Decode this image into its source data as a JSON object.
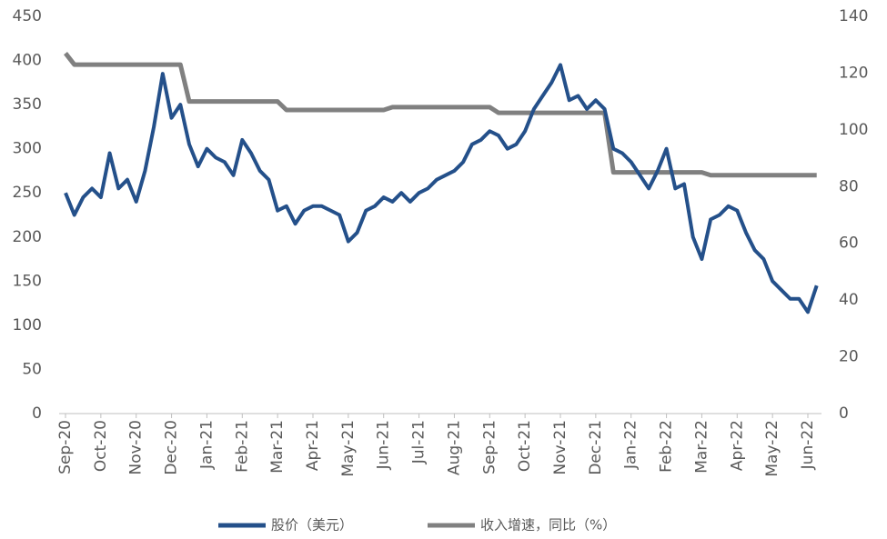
{
  "chart_data": {
    "type": "line",
    "categories": [
      "Sep-20",
      null,
      null,
      null,
      "Oct-20",
      null,
      null,
      null,
      "Nov-20",
      null,
      null,
      null,
      "Dec-20",
      null,
      null,
      null,
      "Jan-21",
      null,
      null,
      null,
      "Feb-21",
      null,
      null,
      null,
      "Mar-21",
      null,
      null,
      null,
      "Apr-21",
      null,
      null,
      null,
      "May-21",
      null,
      null,
      null,
      "Jun-21",
      null,
      null,
      null,
      "Jul-21",
      null,
      null,
      null,
      "Aug-21",
      null,
      null,
      null,
      "Sep-21",
      null,
      null,
      null,
      "Oct-21",
      null,
      null,
      null,
      "Nov-21",
      null,
      null,
      null,
      "Dec-21",
      null,
      null,
      null,
      "Jan-22",
      null,
      null,
      null,
      "Feb-22",
      null,
      null,
      null,
      "Mar-22",
      null,
      null,
      null,
      "Apr-22",
      null,
      null,
      null,
      "May-22",
      null,
      null,
      null,
      "Jun-22",
      null
    ],
    "series": [
      {
        "name": "股价（美元）",
        "color": "#24508a",
        "values": [
          250,
          225,
          245,
          255,
          245,
          295,
          255,
          265,
          240,
          275,
          325,
          385,
          335,
          350,
          305,
          280,
          300,
          290,
          285,
          270,
          310,
          295,
          275,
          265,
          230,
          235,
          215,
          230,
          235,
          235,
          230,
          225,
          195,
          205,
          230,
          235,
          245,
          240,
          250,
          240,
          250,
          255,
          265,
          270,
          275,
          285,
          305,
          310,
          320,
          315,
          300,
          305,
          320,
          345,
          360,
          375,
          395,
          355,
          360,
          345,
          355,
          345,
          300,
          295,
          285,
          270,
          255,
          275,
          300,
          255,
          260,
          200,
          175,
          220,
          225,
          235,
          230,
          205,
          185,
          175,
          150,
          140,
          130,
          130,
          115,
          145
        ]
      },
      {
        "name": "收入增速，同比（%）",
        "color": "#808080",
        "axis": "y2",
        "values": [
          127,
          123,
          123,
          123,
          123,
          123,
          123,
          123,
          123,
          123,
          123,
          123,
          123,
          123,
          110,
          110,
          110,
          110,
          110,
          110,
          110,
          110,
          110,
          110,
          110,
          107,
          107,
          107,
          107,
          107,
          107,
          107,
          107,
          107,
          107,
          107,
          107,
          108,
          108,
          108,
          108,
          108,
          108,
          108,
          108,
          108,
          108,
          108,
          108,
          106,
          106,
          106,
          106,
          106,
          106,
          106,
          106,
          106,
          106,
          106,
          106,
          106,
          85,
          85,
          85,
          85,
          85,
          85,
          85,
          85,
          85,
          85,
          85,
          84,
          84,
          84,
          84,
          84,
          84,
          84,
          84,
          84,
          84,
          84,
          84,
          84
        ]
      }
    ],
    "ylim": [
      0,
      450
    ],
    "yticks": [
      0,
      50,
      100,
      150,
      200,
      250,
      300,
      350,
      400,
      450
    ],
    "y2lim": [
      0,
      140
    ],
    "y2ticks": [
      0,
      20,
      40,
      60,
      80,
      100,
      120,
      140
    ]
  }
}
